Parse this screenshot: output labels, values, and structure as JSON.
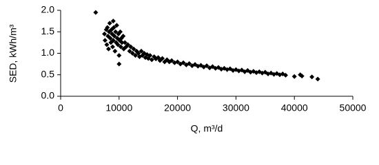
{
  "chart_data": {
    "type": "scatter",
    "x_label": "Q, m³/d",
    "y_label": "SED, kWh/m³",
    "xlim": [
      0,
      50000
    ],
    "xticks": [
      0,
      10000,
      20000,
      30000,
      40000,
      50000
    ],
    "ylim": [
      0,
      2
    ],
    "yticks": [
      {
        "value": 0,
        "label": "0.0"
      },
      0.5,
      {
        "value": 1,
        "label": "1.0"
      },
      1.5,
      {
        "value": 2,
        "label": "2.0"
      }
    ],
    "grid": false,
    "series": [
      {
        "color": "#000000",
        "x": [
          6000,
          7500,
          7600,
          7800,
          7900,
          8000,
          8100,
          8200,
          8300,
          8400,
          8500,
          8600,
          8700,
          8800,
          8900,
          9000,
          9000,
          9100,
          9200,
          9300,
          9400,
          9500,
          9600,
          9700,
          9800,
          9900,
          10000,
          10000,
          10100,
          10200,
          10300,
          10400,
          10500,
          10700,
          10800,
          11000,
          11200,
          11500,
          11800,
          12000,
          12300,
          12500,
          12800,
          13000,
          13300,
          13500,
          13800,
          14000,
          14300,
          14500,
          14800,
          15000,
          15300,
          15600,
          16000,
          16300,
          16700,
          17000,
          17400,
          17800,
          18200,
          18600,
          19000,
          19500,
          20000,
          20500,
          21000,
          21500,
          22000,
          22500,
          23000,
          23500,
          24000,
          24500,
          25000,
          25500,
          26000,
          26500,
          27000,
          27500,
          28000,
          28500,
          29000,
          29500,
          30000,
          30500,
          31000,
          31500,
          32000,
          32500,
          33000,
          33500,
          34000,
          34500,
          35000,
          35500,
          36000,
          36500,
          37000,
          37500,
          38000,
          38500,
          40000,
          41000,
          41300,
          43000,
          44000
        ],
        "values": [
          1.95,
          1.45,
          1.3,
          1.55,
          1.2,
          1.6,
          1.4,
          1.1,
          1.5,
          1.7,
          1.35,
          1.25,
          1.55,
          1.45,
          1.15,
          1.75,
          1.3,
          1.6,
          1.4,
          1.05,
          1.5,
          1.25,
          1.65,
          1.35,
          1.2,
          1.45,
          0.75,
          0.95,
          1.3,
          1.5,
          1.15,
          1.35,
          1.25,
          1.4,
          1.1,
          1.25,
          1.15,
          1.2,
          1.05,
          1.15,
          1.0,
          1.1,
          0.95,
          1.05,
          1.0,
          0.92,
          1.05,
          0.95,
          1.0,
          0.9,
          0.97,
          0.88,
          0.95,
          0.85,
          0.92,
          0.87,
          0.9,
          0.83,
          0.88,
          0.8,
          0.85,
          0.8,
          0.83,
          0.78,
          0.8,
          0.75,
          0.78,
          0.73,
          0.76,
          0.71,
          0.74,
          0.7,
          0.72,
          0.68,
          0.71,
          0.66,
          0.69,
          0.65,
          0.67,
          0.63,
          0.65,
          0.62,
          0.64,
          0.6,
          0.62,
          0.59,
          0.61,
          0.57,
          0.6,
          0.56,
          0.58,
          0.55,
          0.57,
          0.54,
          0.56,
          0.52,
          0.54,
          0.51,
          0.53,
          0.5,
          0.52,
          0.49,
          0.46,
          0.5,
          0.47,
          0.45,
          0.4
        ]
      }
    ]
  }
}
